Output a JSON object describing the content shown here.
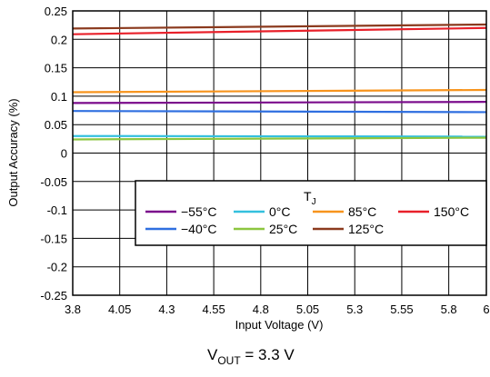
{
  "chart_data": {
    "type": "line",
    "xlabel": "Input Voltage (V)",
    "ylabel": "Output Accuracy (%)",
    "xlim": [
      3.8,
      6
    ],
    "ylim": [
      -0.25,
      0.25
    ],
    "grid": true,
    "x_ticks": [
      "3.8",
      "4.05",
      "4.3",
      "4.55",
      "4.8",
      "5.05",
      "5.3",
      "5.55",
      "5.8",
      "6"
    ],
    "y_ticks": [
      "0.25",
      "0.2",
      "0.15",
      "0.1",
      "0.05",
      "0",
      "-0.05",
      "-0.1",
      "-0.15",
      "-0.2",
      "-0.25"
    ],
    "x": [
      3.8,
      6
    ],
    "legend": {
      "title_main": "T",
      "title_sub": "J",
      "placement": "lower-right"
    },
    "series": [
      {
        "name": "−55°C",
        "color": "#7b0c8c",
        "values": [
          0.088,
          0.09
        ]
      },
      {
        "name": "−40°C",
        "color": "#2f6fe0",
        "values": [
          0.074,
          0.072
        ]
      },
      {
        "name": "0°C",
        "color": "#34c0de",
        "values": [
          0.03,
          0.029
        ]
      },
      {
        "name": "25°C",
        "color": "#8cc63f",
        "values": [
          0.024,
          0.027
        ]
      },
      {
        "name": "85°C",
        "color": "#f7941d",
        "values": [
          0.107,
          0.111
        ]
      },
      {
        "name": "125°C",
        "color": "#8b3a1e",
        "values": [
          0.219,
          0.226
        ]
      },
      {
        "name": "150°C",
        "color": "#e8202a",
        "values": [
          0.209,
          0.22
        ]
      }
    ],
    "caption": {
      "main": "V",
      "sub": "OUT",
      "rest": " = 3.3 V"
    }
  }
}
